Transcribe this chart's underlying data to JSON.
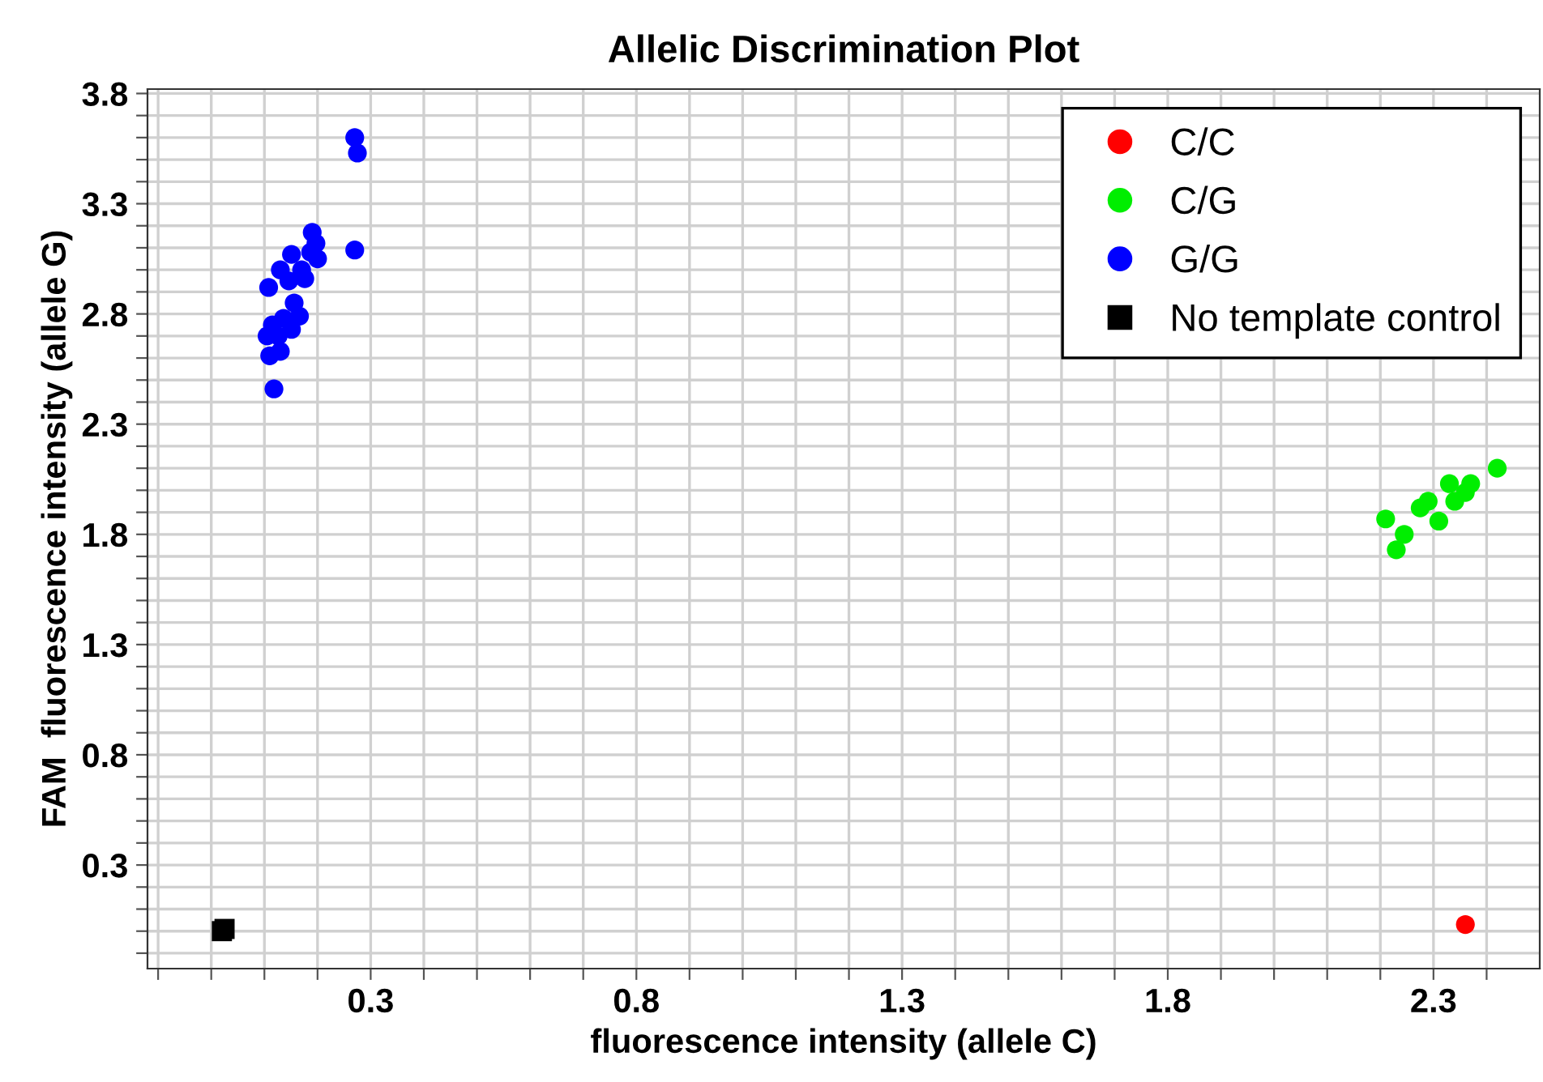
{
  "chart_data": {
    "type": "scatter",
    "title": "Allelic Discrimination Plot",
    "xlabel": "fluorescence intensity (allele C)",
    "ylabel": "FAM  fluorescence intensity (allele G)",
    "xlim": [
      -0.12,
      2.5
    ],
    "ylim": [
      -0.17,
      3.82
    ],
    "xticks": [
      {
        "value": -0.1,
        "label": null
      },
      {
        "value": 0,
        "label": null
      },
      {
        "value": 0.1,
        "label": null
      },
      {
        "value": 0.2,
        "label": null
      },
      0.3,
      {
        "value": 0.4,
        "label": null
      },
      {
        "value": 0.5,
        "label": null
      },
      {
        "value": 0.6,
        "label": null
      },
      {
        "value": 0.7,
        "label": null
      },
      0.8,
      {
        "value": 0.9,
        "label": null
      },
      {
        "value": 1.0,
        "label": null
      },
      {
        "value": 1.1,
        "label": null
      },
      {
        "value": 1.2,
        "label": null
      },
      1.3,
      {
        "value": 1.4,
        "label": null
      },
      {
        "value": 1.5,
        "label": null
      },
      {
        "value": 1.6,
        "label": null
      },
      {
        "value": 1.7,
        "label": null
      },
      1.8,
      {
        "value": 1.9,
        "label": null
      },
      {
        "value": 2.0,
        "label": null
      },
      {
        "value": 2.1,
        "label": null
      },
      {
        "value": 2.2,
        "label": null
      },
      2.3,
      {
        "value": 2.4,
        "label": null
      }
    ],
    "yticks": [
      {
        "value": -0.1,
        "label": null
      },
      {
        "value": 0,
        "label": null
      },
      {
        "value": 0.1,
        "label": null
      },
      {
        "value": 0.2,
        "label": null
      },
      0.3,
      {
        "value": 0.4,
        "label": null
      },
      {
        "value": 0.5,
        "label": null
      },
      {
        "value": 0.6,
        "label": null
      },
      {
        "value": 0.7,
        "label": null
      },
      0.8,
      {
        "value": 0.9,
        "label": null
      },
      {
        "value": 1.0,
        "label": null
      },
      {
        "value": 1.1,
        "label": null
      },
      {
        "value": 1.2,
        "label": null
      },
      1.3,
      {
        "value": 1.4,
        "label": null
      },
      {
        "value": 1.5,
        "label": null
      },
      {
        "value": 1.6,
        "label": null
      },
      {
        "value": 1.7,
        "label": null
      },
      1.8,
      {
        "value": 1.9,
        "label": null
      },
      {
        "value": 2.0,
        "label": null
      },
      {
        "value": 2.1,
        "label": null
      },
      {
        "value": 2.2,
        "label": null
      },
      2.3,
      {
        "value": 2.4,
        "label": null
      },
      {
        "value": 2.5,
        "label": null
      },
      {
        "value": 2.6,
        "label": null
      },
      {
        "value": 2.7,
        "label": null
      },
      2.8,
      {
        "value": 2.9,
        "label": null
      },
      {
        "value": 3.0,
        "label": null
      },
      {
        "value": 3.1,
        "label": null
      },
      {
        "value": 3.2,
        "label": null
      },
      3.3,
      {
        "value": 3.4,
        "label": null
      },
      {
        "value": 3.5,
        "label": null
      },
      {
        "value": 3.6,
        "label": null
      },
      {
        "value": 3.7,
        "label": null
      },
      3.8
    ],
    "grid": true,
    "legend": "top right",
    "marker": "circle",
    "series": [
      {
        "name": "C/C",
        "color": "#ff0000",
        "x": [
          2.36
        ],
        "values": [
          0.03
        ]
      },
      {
        "name": "C/G",
        "color": "#00ee00",
        "x": [
          2.21,
          2.245,
          2.23,
          2.275,
          2.29,
          2.31,
          2.33,
          2.34,
          2.36,
          2.37,
          2.42
        ],
        "values": [
          1.87,
          1.8,
          1.73,
          1.92,
          1.95,
          1.86,
          2.03,
          1.95,
          1.99,
          2.03,
          2.1
        ]
      },
      {
        "name": "G/G",
        "color": "#0000ff",
        "x": [
          0.27,
          0.275,
          0.27,
          0.118,
          0.108,
          0.11,
          0.13,
          0.105,
          0.115,
          0.13,
          0.19,
          0.2,
          0.197,
          0.166,
          0.151,
          0.151,
          0.17,
          0.136,
          0.156,
          0.176,
          0.187,
          0.126,
          0.146
        ],
        "values": [
          3.6,
          3.53,
          3.09,
          2.46,
          2.92,
          2.61,
          2.63,
          2.7,
          2.75,
          3.0,
          3.17,
          3.05,
          3.12,
          2.79,
          3.07,
          2.73,
          3.0,
          2.78,
          2.85,
          2.96,
          3.08,
          2.7,
          2.95
        ]
      },
      {
        "name": "No template control",
        "color": "#000000",
        "marker": "square",
        "x": [
          0.02,
          0.025
        ],
        "values": [
          0.0,
          0.01
        ]
      }
    ]
  }
}
